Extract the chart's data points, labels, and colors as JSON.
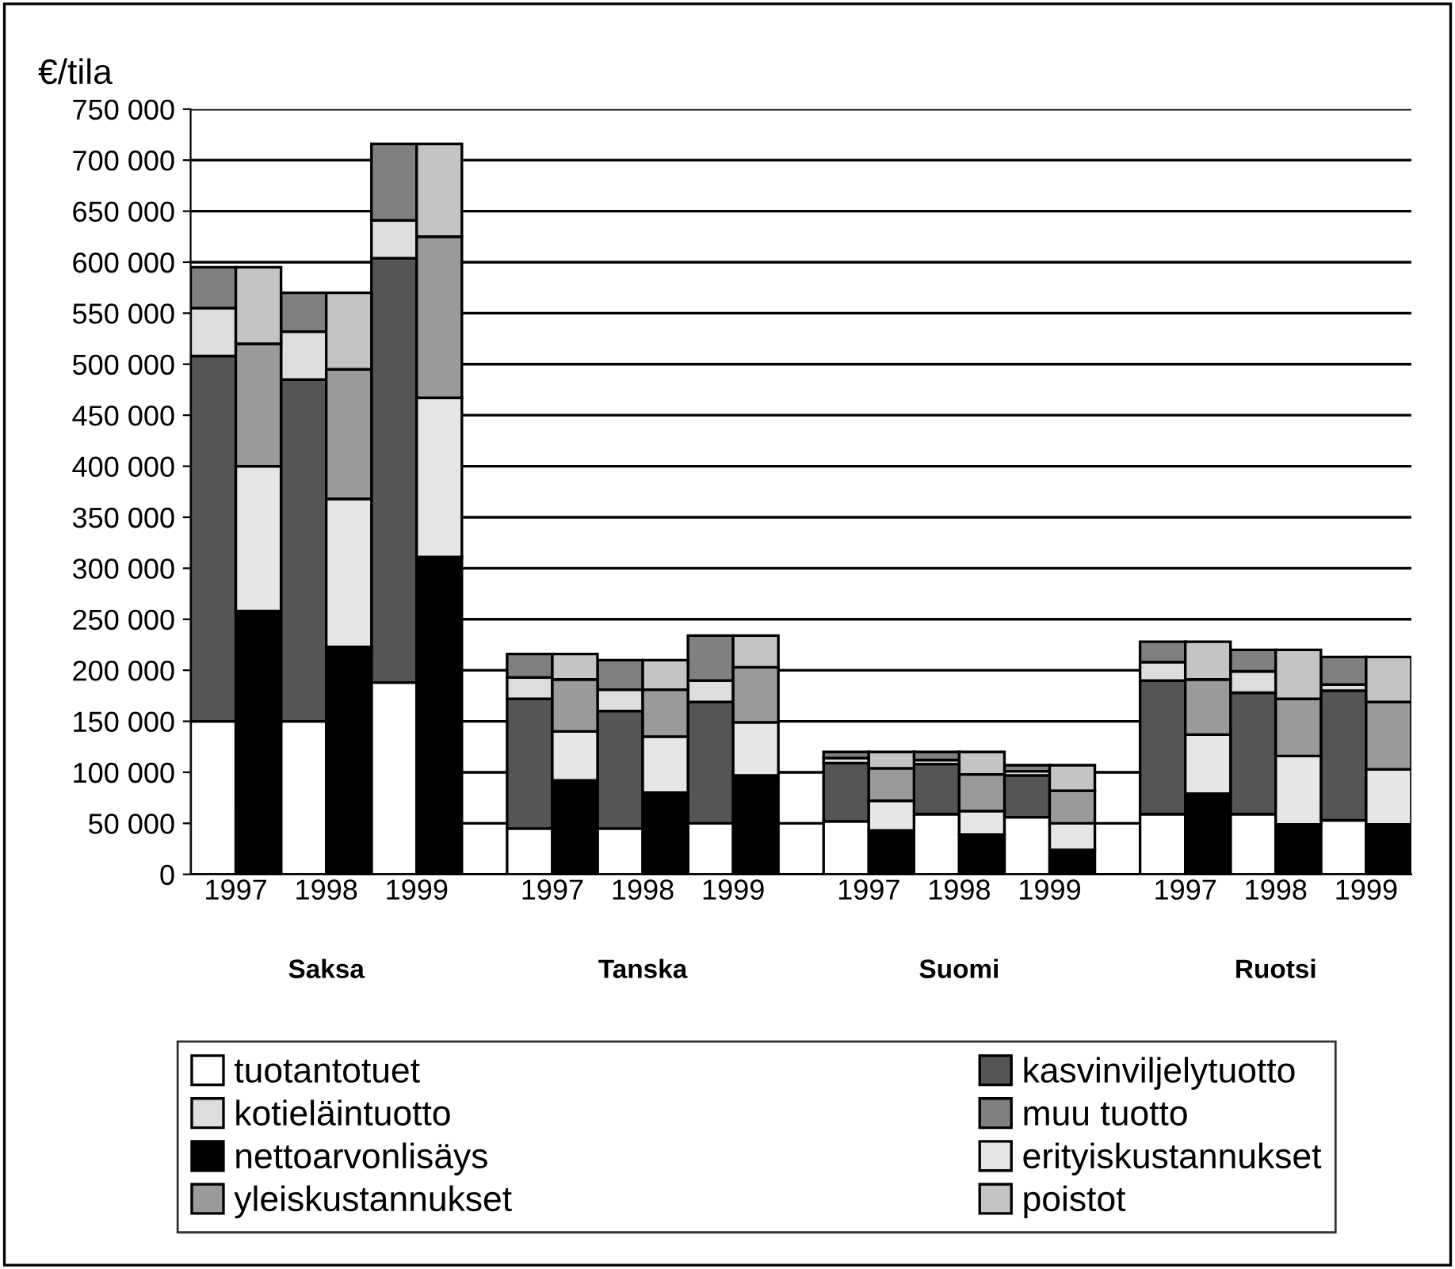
{
  "chart_data": {
    "type": "bar",
    "stacked": true,
    "ylabel": "€/tila",
    "categories": [
      "1997",
      null,
      "1998",
      null,
      "1999",
      null,
      null,
      "1997",
      null,
      "1998",
      null,
      "1999",
      null,
      null,
      "1997",
      null,
      "1998",
      null,
      "1999",
      null,
      null,
      "1997",
      null,
      "1998",
      null,
      "1999",
      null
    ],
    "annotations": [
      "Saksa",
      "Tanska",
      "Suomi",
      "Ruotsi"
    ],
    "ylim": [
      0,
      750000
    ],
    "yticks": [
      {
        "value": 0,
        "label": "0"
      },
      {
        "value": 50000,
        "label": "50 000"
      },
      {
        "value": 100000,
        "label": "100 000"
      },
      {
        "value": 150000,
        "label": "150 000"
      },
      {
        "value": 200000,
        "label": "200 000"
      },
      {
        "value": 250000,
        "label": "250 000"
      },
      {
        "value": 300000,
        "label": "300 000"
      },
      {
        "value": 350000,
        "label": "350 000"
      },
      {
        "value": 400000,
        "label": "400 000"
      },
      {
        "value": 450000,
        "label": "450 000"
      },
      {
        "value": 500000,
        "label": "500 000"
      },
      {
        "value": 550000,
        "label": "550 000"
      },
      {
        "value": 600000,
        "label": "600 000"
      },
      {
        "value": 650000,
        "label": "650 000"
      },
      {
        "value": 700000,
        "label": "700 000"
      },
      {
        "value": 750000,
        "label": "750 000"
      }
    ],
    "grid": "y",
    "legend": "bottom",
    "series": [
      {
        "name": "tuotantotuet",
        "color": "#ffffff",
        "values": [
          150000,
          null,
          150000,
          null,
          188000,
          null,
          null,
          45000,
          null,
          45000,
          null,
          50000,
          null,
          null,
          52000,
          null,
          59000,
          null,
          56000,
          null,
          null,
          59000,
          null,
          59000,
          null,
          53000,
          null
        ]
      },
      {
        "name": "kasvinviljelytuotto",
        "color": "#555555",
        "values": [
          358000,
          null,
          335000,
          null,
          416000,
          null,
          null,
          127000,
          null,
          115000,
          null,
          119000,
          null,
          null,
          57000,
          null,
          49000,
          null,
          41000,
          null,
          null,
          131000,
          null,
          119000,
          null,
          127000,
          null
        ]
      },
      {
        "name": "kotieläintuotto",
        "color": "#dddddd",
        "values": [
          47000,
          null,
          47000,
          null,
          37000,
          null,
          null,
          21000,
          null,
          21000,
          null,
          21000,
          null,
          null,
          5000,
          null,
          4000,
          null,
          4000,
          null,
          null,
          18000,
          null,
          21000,
          null,
          6000,
          null
        ]
      },
      {
        "name": "muu tuotto",
        "color": "#808080",
        "values": [
          40000,
          null,
          38000,
          null,
          75000,
          null,
          null,
          23000,
          null,
          29000,
          null,
          44000,
          null,
          null,
          6000,
          null,
          8000,
          null,
          6000,
          null,
          null,
          20000,
          null,
          21000,
          null,
          27000,
          null
        ]
      },
      {
        "name": "nettoarvonlisäys",
        "color": "#000000",
        "values": [
          null,
          258000,
          null,
          223000,
          null,
          311000,
          null,
          null,
          92000,
          null,
          80000,
          null,
          97000,
          null,
          null,
          43000,
          null,
          39000,
          null,
          24000,
          null,
          null,
          79000,
          null,
          49000,
          null,
          49000
        ]
      },
      {
        "name": "erityiskustannukset",
        "color": "#e6e6e6",
        "values": [
          null,
          142000,
          null,
          145000,
          null,
          156000,
          null,
          null,
          48000,
          null,
          55000,
          null,
          52000,
          null,
          null,
          29000,
          null,
          23000,
          null,
          26000,
          null,
          null,
          58000,
          null,
          67000,
          null,
          54000
        ]
      },
      {
        "name": "yleiskustannukset",
        "color": "#9a9a9a",
        "values": [
          null,
          120000,
          null,
          127000,
          null,
          158000,
          null,
          null,
          51000,
          null,
          46000,
          null,
          54000,
          null,
          null,
          32000,
          null,
          36000,
          null,
          32000,
          null,
          null,
          54000,
          null,
          56000,
          null,
          66000
        ]
      },
      {
        "name": "poistot",
        "color": "#c4c4c4",
        "values": [
          null,
          75000,
          null,
          75000,
          null,
          91000,
          null,
          null,
          25000,
          null,
          29000,
          null,
          31000,
          null,
          null,
          16000,
          null,
          22000,
          null,
          25000,
          null,
          null,
          37000,
          null,
          48000,
          null,
          44000
        ]
      }
    ]
  }
}
